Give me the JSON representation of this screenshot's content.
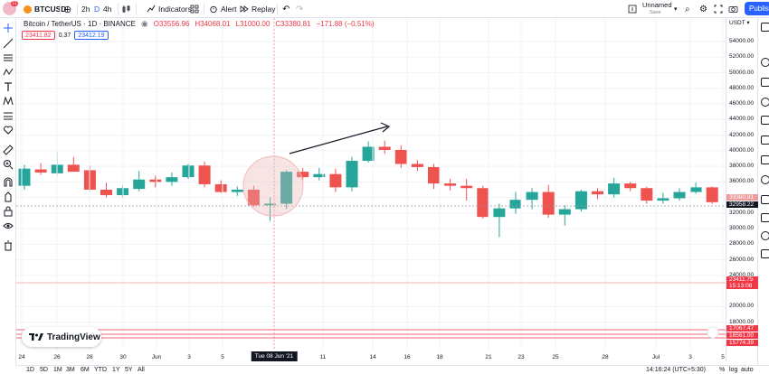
{
  "toolbar": {
    "avatar_badge": "11",
    "symbol": "BTCUSD",
    "interval_2h": "2h",
    "interval_D": "D",
    "interval_4h": "4h",
    "indicators": "Indicators",
    "alert": "Alert",
    "replay": "Replay",
    "layout_name": "Unnamed",
    "layout_status": "Save",
    "publish": "Publish"
  },
  "legend": {
    "title": "Bitcoin / TetherUS · 1D · BINANCE",
    "open": "O33556.96",
    "high": "H34068.01",
    "low": "L31000.00",
    "close": "C33380.81",
    "change": "−171.88 (−0.51%)",
    "bid": "23411.82",
    "spread": "0.37",
    "ask": "23412.19"
  },
  "price_scale": {
    "currency": "USDT ▾",
    "ticks": [
      "54000.00",
      "52000.00",
      "50000.00",
      "48000.00",
      "46000.00",
      "44000.00",
      "42000.00",
      "40000.00",
      "38000.00",
      "36000.00",
      "34000.00",
      "32000.00",
      "30000.00",
      "28000.00",
      "26000.00",
      "24000.00",
      "20000.00",
      "18000.00"
    ],
    "current_price": "32958.22",
    "current_price_label": "33380.81",
    "badge_price": "23411.75",
    "badge_timer": "15:13:08",
    "low_lines": [
      "17067.47",
      "16561.00",
      "15774.39"
    ]
  },
  "chart_data": {
    "type": "candlestick",
    "x_labels": [
      "24",
      "26",
      "28",
      "30",
      "Jun",
      "3",
      "5",
      "Tue 08 Jun '21",
      "11",
      "14",
      "16",
      "18",
      "21",
      "23",
      "25",
      "28",
      "Jul",
      "3",
      "5"
    ],
    "candles": [
      {
        "o": 35500,
        "h": 38200,
        "l": 35000,
        "c": 37700
      },
      {
        "o": 37600,
        "h": 38400,
        "l": 36900,
        "c": 37200
      },
      {
        "o": 37100,
        "h": 39800,
        "l": 36800,
        "c": 38200
      },
      {
        "o": 38200,
        "h": 39200,
        "l": 37500,
        "c": 37300
      },
      {
        "o": 37500,
        "h": 38100,
        "l": 34800,
        "c": 35000
      },
      {
        "o": 35000,
        "h": 35900,
        "l": 34000,
        "c": 34300
      },
      {
        "o": 34300,
        "h": 35600,
        "l": 34000,
        "c": 35200
      },
      {
        "o": 35100,
        "h": 37400,
        "l": 34800,
        "c": 36300
      },
      {
        "o": 36300,
        "h": 36800,
        "l": 35300,
        "c": 36000
      },
      {
        "o": 36000,
        "h": 37200,
        "l": 35500,
        "c": 36600
      },
      {
        "o": 36600,
        "h": 38300,
        "l": 36400,
        "c": 38100
      },
      {
        "o": 38100,
        "h": 38600,
        "l": 35300,
        "c": 35700
      },
      {
        "o": 35700,
        "h": 36200,
        "l": 34600,
        "c": 34700
      },
      {
        "o": 34700,
        "h": 35400,
        "l": 34200,
        "c": 35000
      },
      {
        "o": 35000,
        "h": 35500,
        "l": 32800,
        "c": 33000
      },
      {
        "o": 33000,
        "h": 34000,
        "l": 31000,
        "c": 33200
      },
      {
        "o": 33200,
        "h": 37500,
        "l": 32500,
        "c": 37300
      },
      {
        "o": 37300,
        "h": 37800,
        "l": 36200,
        "c": 36600
      },
      {
        "o": 36600,
        "h": 37800,
        "l": 36200,
        "c": 37000
      },
      {
        "o": 37000,
        "h": 37700,
        "l": 34700,
        "c": 35300
      },
      {
        "o": 35300,
        "h": 39200,
        "l": 34800,
        "c": 38700
      },
      {
        "o": 38700,
        "h": 41200,
        "l": 38500,
        "c": 40500
      },
      {
        "o": 40500,
        "h": 41300,
        "l": 39600,
        "c": 40100
      },
      {
        "o": 40100,
        "h": 40700,
        "l": 37800,
        "c": 38300
      },
      {
        "o": 38300,
        "h": 38800,
        "l": 37400,
        "c": 37900
      },
      {
        "o": 37900,
        "h": 38300,
        "l": 35100,
        "c": 35800
      },
      {
        "o": 35800,
        "h": 36400,
        "l": 34900,
        "c": 35500
      },
      {
        "o": 35500,
        "h": 36400,
        "l": 33600,
        "c": 35200
      },
      {
        "o": 35200,
        "h": 35500,
        "l": 31300,
        "c": 31500
      },
      {
        "o": 31500,
        "h": 33200,
        "l": 28900,
        "c": 32600
      },
      {
        "o": 32600,
        "h": 34700,
        "l": 31900,
        "c": 33700
      },
      {
        "o": 33700,
        "h": 35200,
        "l": 32500,
        "c": 34700
      },
      {
        "o": 34700,
        "h": 35600,
        "l": 31400,
        "c": 31800
      },
      {
        "o": 31800,
        "h": 33000,
        "l": 30400,
        "c": 32500
      },
      {
        "o": 32500,
        "h": 35000,
        "l": 32200,
        "c": 34800
      },
      {
        "o": 34800,
        "h": 35200,
        "l": 33800,
        "c": 34400
      },
      {
        "o": 34400,
        "h": 36500,
        "l": 34000,
        "c": 35800
      },
      {
        "o": 35800,
        "h": 36000,
        "l": 34800,
        "c": 35200
      },
      {
        "o": 35200,
        "h": 35400,
        "l": 33200,
        "c": 33600
      },
      {
        "o": 33600,
        "h": 34600,
        "l": 33200,
        "c": 33900
      },
      {
        "o": 33900,
        "h": 35200,
        "l": 33600,
        "c": 34700
      },
      {
        "o": 34700,
        "h": 35900,
        "l": 34500,
        "c": 35300
      },
      {
        "o": 35300,
        "h": 35400,
        "l": 33200,
        "c": 33400
      }
    ],
    "ylim": [
      15000,
      55000
    ],
    "up_color": "#26a69a",
    "down_color": "#ef5350",
    "highlight_date": "Tue 08 Jun '21"
  },
  "time_axis": {
    "labels": [
      "24",
      "26",
      "28",
      "30",
      "Jun",
      "3",
      "5",
      "11",
      "14",
      "16",
      "18",
      "21",
      "23",
      "25",
      "28",
      "Jul",
      "3",
      "5"
    ],
    "highlight": "Tue 08 Jun '21"
  },
  "ranges": [
    "1D",
    "5D",
    "1M",
    "3M",
    "6M",
    "YTD",
    "1Y",
    "5Y",
    "All"
  ],
  "bottom_right": {
    "clock": "14:16:24 (UTC+5:30)",
    "percent": "%",
    "log": "log",
    "auto": "auto"
  },
  "watermark": "TradingView"
}
